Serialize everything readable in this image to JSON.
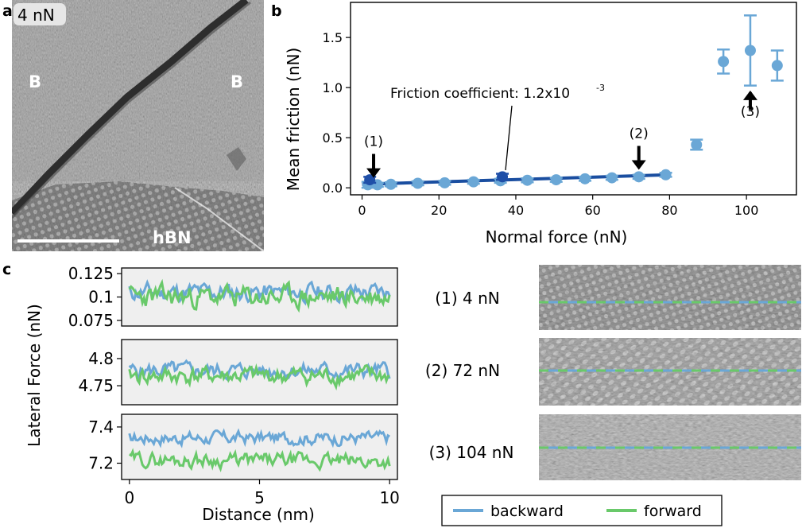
{
  "panel_labels": {
    "a": "a",
    "b": "b",
    "c": "c"
  },
  "panel_a": {
    "force_label": "4 nN",
    "region_left": "B",
    "region_right": "B",
    "region_bottom": "hBN"
  },
  "colors": {
    "light_blue": "#6aa7d6",
    "dark_blue": "#1f4fa8",
    "fit_line": "#1a4ea0",
    "backward": "#6aa7d6",
    "forward": "#69c96a",
    "panel_bg": "#efefef"
  },
  "chart_data": [
    {
      "type": "scatter",
      "panel": "b",
      "xlabel": "Normal force (nN)",
      "ylabel": "Mean friction (nN)",
      "xlim": [
        -3,
        113
      ],
      "ylim": [
        -0.07,
        1.85
      ],
      "xticks": [
        0,
        20,
        40,
        60,
        80,
        100
      ],
      "yticks": [
        0.0,
        0.5,
        1.0,
        1.5
      ],
      "xtick_labels": [
        "0",
        "20",
        "40",
        "60",
        "80",
        "100"
      ],
      "ytick_labels": [
        "0.0",
        "0.5",
        "1.0",
        "1.5"
      ],
      "series": [
        {
          "color": "#6aa7d6",
          "points": [
            {
              "x": 1.5,
              "y": 0.03,
              "err": 0.03
            },
            {
              "x": 4,
              "y": 0.03,
              "err": 0.02
            },
            {
              "x": 7.5,
              "y": 0.035,
              "err": 0.02
            },
            {
              "x": 14.5,
              "y": 0.045,
              "err": 0.02
            },
            {
              "x": 21.5,
              "y": 0.05,
              "err": 0.02
            },
            {
              "x": 29,
              "y": 0.06,
              "err": 0.02
            },
            {
              "x": 36,
              "y": 0.07,
              "err": 0.02
            },
            {
              "x": 43,
              "y": 0.075,
              "err": 0.02
            },
            {
              "x": 50.5,
              "y": 0.08,
              "err": 0.02
            },
            {
              "x": 58,
              "y": 0.09,
              "err": 0.02
            },
            {
              "x": 65,
              "y": 0.1,
              "err": 0.02
            },
            {
              "x": 72,
              "y": 0.11,
              "err": 0.02
            },
            {
              "x": 79,
              "y": 0.13,
              "err": 0.02
            },
            {
              "x": 87,
              "y": 0.43,
              "err": 0.05
            },
            {
              "x": 94,
              "y": 1.26,
              "err": 0.12
            },
            {
              "x": 101,
              "y": 1.37,
              "err": 0.35
            },
            {
              "x": 108,
              "y": 1.22,
              "err": 0.15
            }
          ]
        },
        {
          "color": "#1f4fa8",
          "points": [
            {
              "x": 2,
              "y": 0.08,
              "err": 0.03
            },
            {
              "x": 36.5,
              "y": 0.11,
              "err": 0.03
            }
          ]
        }
      ],
      "fit_line": {
        "x": [
          0,
          80
        ],
        "y": [
          0.035,
          0.13
        ]
      },
      "annotation": "Friction coefficient: 1.2x10",
      "annotation_exp": "-3",
      "arrows": [
        {
          "label": "(1)",
          "x": 3,
          "y": 0.1
        },
        {
          "label": "(2)",
          "x": 72,
          "y": 0.18
        },
        {
          "label": "(3)",
          "x": 101,
          "y": 0.97
        }
      ]
    },
    {
      "type": "line",
      "panel": "c-top",
      "ylim": [
        0.069,
        0.131
      ],
      "yticks": [
        0.075,
        0.1,
        0.125
      ],
      "ytick_labels": [
        "0.075",
        "0.1",
        "0.125"
      ],
      "series": [
        {
          "name": "backward",
          "noise": {
            "seed": 11,
            "base": 0.105,
            "amp": 0.011,
            "drift": 0
          }
        },
        {
          "name": "forward",
          "noise": {
            "seed": 23,
            "base": 0.1,
            "amp": 0.013,
            "drift": 0
          }
        }
      ]
    },
    {
      "type": "line",
      "panel": "c-mid",
      "ylim": [
        4.715,
        4.835
      ],
      "yticks": [
        4.75,
        4.8
      ],
      "ytick_labels": [
        "4.75",
        "4.8"
      ],
      "series": [
        {
          "name": "backward",
          "noise": {
            "seed": 5,
            "base": 4.778,
            "amp": 0.016,
            "drift": 0
          }
        },
        {
          "name": "forward",
          "noise": {
            "seed": 41,
            "base": 4.768,
            "amp": 0.018,
            "drift": 0
          }
        }
      ]
    },
    {
      "type": "line",
      "panel": "c-bottom",
      "ylim": [
        7.11,
        7.47
      ],
      "yticks": [
        7.2,
        7.4
      ],
      "ytick_labels": [
        "7.2",
        "7.4"
      ],
      "xlabel": "Distance (nm)",
      "xlim": [
        -0.3,
        10.3
      ],
      "xticks": [
        0,
        5,
        10
      ],
      "xtick_labels": [
        "0",
        "5",
        "10"
      ],
      "series": [
        {
          "name": "backward",
          "noise": {
            "seed": 17,
            "base": 7.34,
            "amp": 0.04,
            "drift": 0
          }
        },
        {
          "name": "forward",
          "noise": {
            "seed": 29,
            "base": 7.22,
            "amp": 0.045,
            "drift": -0.01
          }
        }
      ]
    }
  ],
  "panel_c": {
    "ylabel": "Lateral Force (nN)",
    "images": [
      {
        "label": "(1) 4 nN"
      },
      {
        "label": "(2) 72 nN"
      },
      {
        "label": "(3) 104 nN"
      }
    ],
    "legend": {
      "backward": "backward",
      "forward": "forward"
    }
  }
}
